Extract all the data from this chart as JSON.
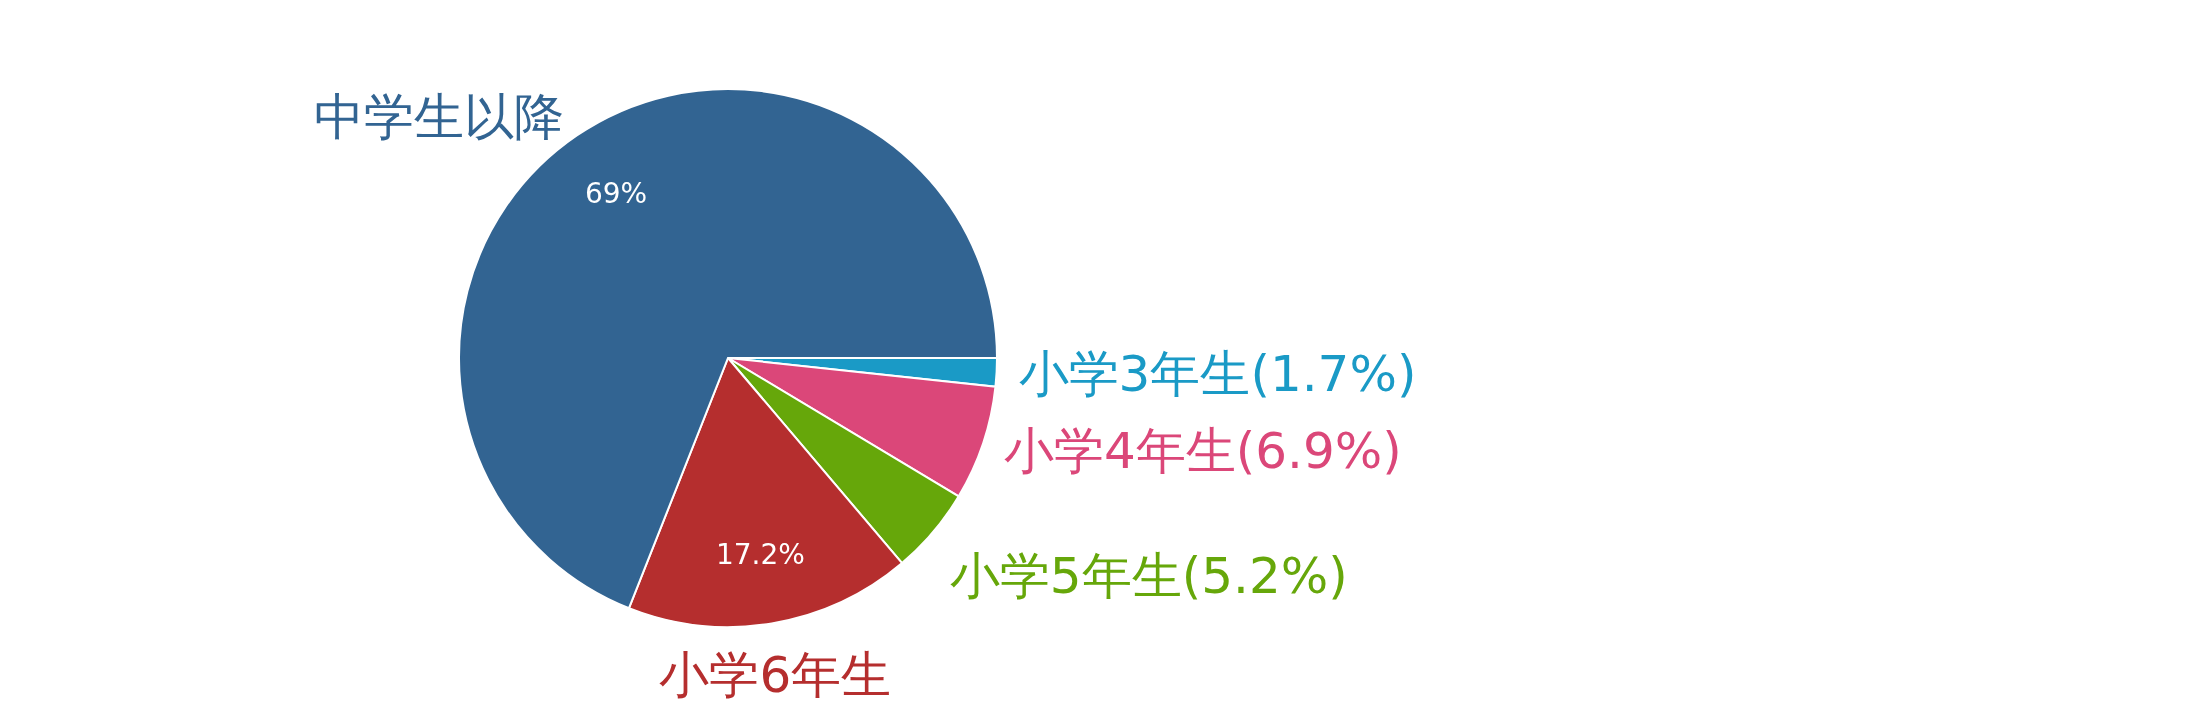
{
  "chart_data": {
    "type": "pie",
    "categories": [
      "小学3年生(1.7%)",
      "小学4年生(6.9%)",
      "小学5年生(5.2%)",
      "小学6年生",
      "中学生以降"
    ],
    "values": [
      1.7,
      6.9,
      5.2,
      17.2,
      69
    ],
    "colors": [
      "#1a9ac6",
      "#db4779",
      "#66a70a",
      "#b52e2e",
      "#326492"
    ],
    "value_labels": [
      null,
      null,
      null,
      "17.2%",
      "69%"
    ]
  }
}
